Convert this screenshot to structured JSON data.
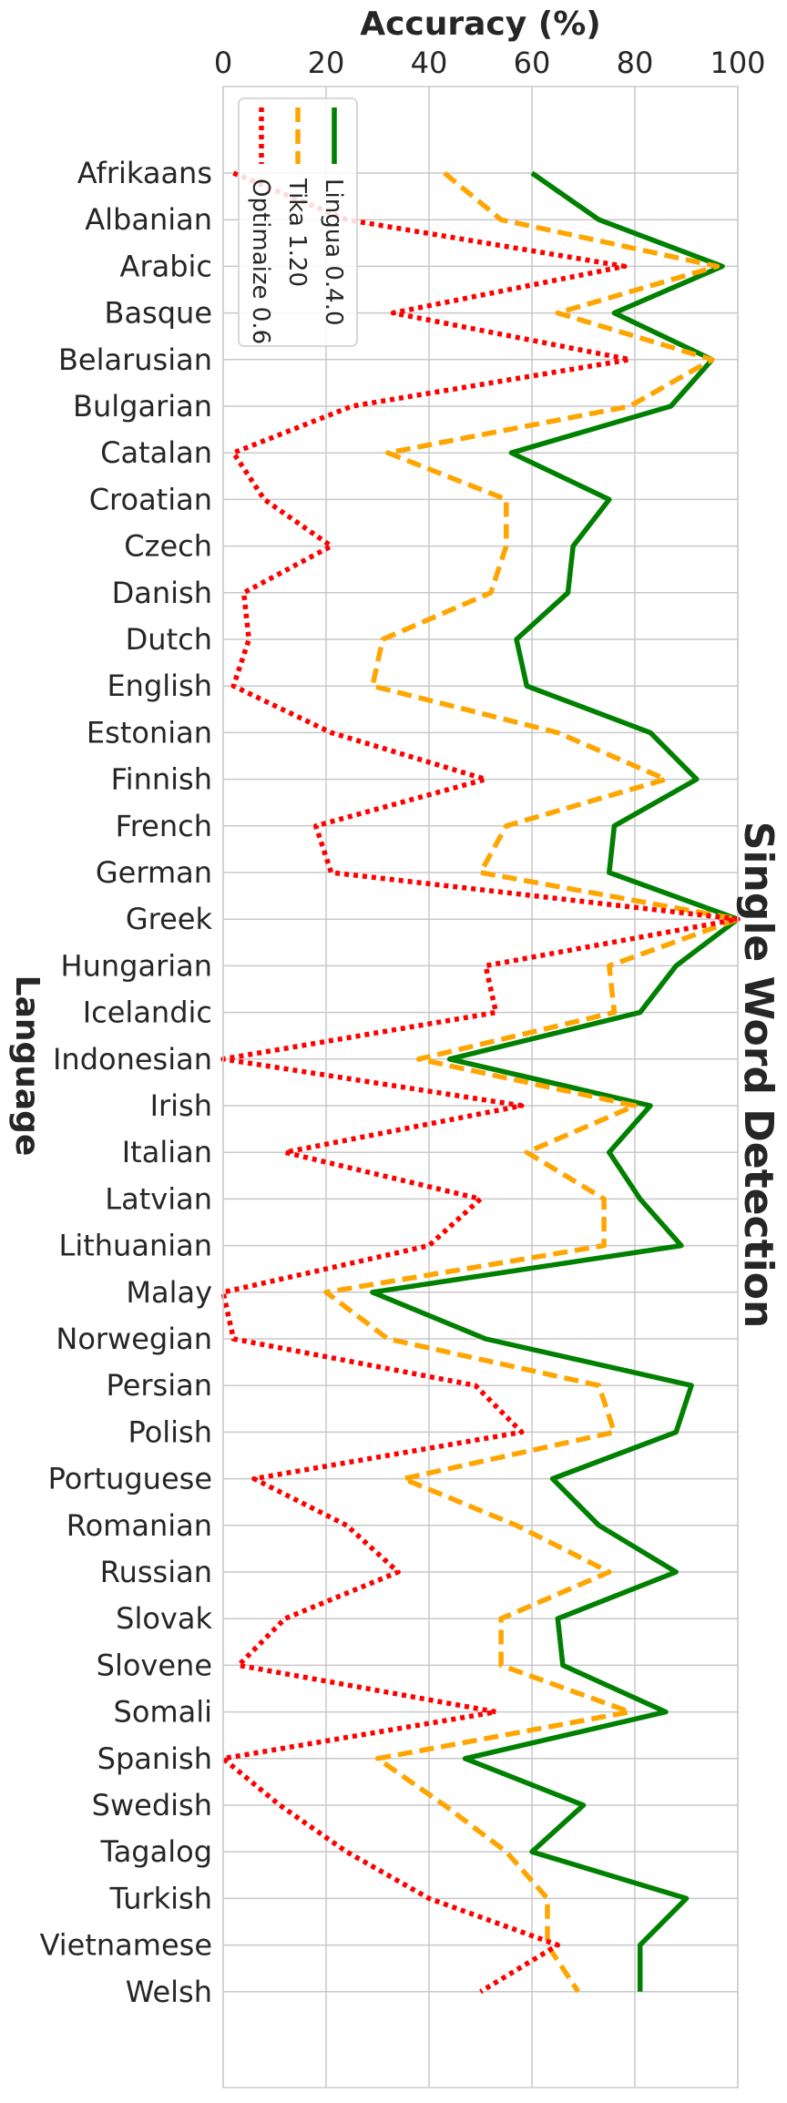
{
  "chart_data": {
    "type": "line",
    "title": "Single Word Detection",
    "xlabel": "Accuracy (%)",
    "ylabel": "Language",
    "xlim": [
      0,
      100
    ],
    "x_ticks": [
      0,
      20,
      40,
      60,
      80,
      100
    ],
    "grid": true,
    "legend_position": "top-left",
    "categories": [
      "Afrikaans",
      "Albanian",
      "Arabic",
      "Basque",
      "Belarusian",
      "Bulgarian",
      "Catalan",
      "Croatian",
      "Czech",
      "Danish",
      "Dutch",
      "English",
      "Estonian",
      "Finnish",
      "French",
      "German",
      "Greek",
      "Hungarian",
      "Icelandic",
      "Indonesian",
      "Irish",
      "Italian",
      "Latvian",
      "Lithuanian",
      "Malay",
      "Norwegian",
      "Persian",
      "Polish",
      "Portuguese",
      "Romanian",
      "Russian",
      "Slovak",
      "Slovene",
      "Somali",
      "Spanish",
      "Swedish",
      "Tagalog",
      "Turkish",
      "Vietnamese",
      "Welsh"
    ],
    "series": [
      {
        "name": "Lingua 0.4.0",
        "color": "#008000",
        "style": "solid",
        "values": [
          60,
          73,
          97,
          76,
          95,
          87,
          56,
          75,
          68,
          67,
          57,
          59,
          83,
          92,
          76,
          75,
          100,
          88,
          81,
          44,
          83,
          75,
          81,
          89,
          29,
          51,
          91,
          88,
          64,
          73,
          88,
          65,
          66,
          86,
          47,
          70,
          60,
          90,
          81,
          81
        ]
      },
      {
        "name": "Tika 1.20",
        "color": "#FFA500",
        "style": "dashed",
        "values": [
          43,
          54,
          96,
          65,
          95,
          79,
          32,
          55,
          55,
          52,
          31,
          29,
          65,
          86,
          55,
          50,
          100,
          75,
          76,
          38,
          80,
          59,
          74,
          74,
          20,
          32,
          73,
          76,
          35,
          57,
          75,
          54,
          54,
          79,
          30,
          43,
          55,
          63,
          63,
          69
        ]
      },
      {
        "name": "Optimaize 0.6",
        "color": "#FF0000",
        "style": "dotted",
        "values": [
          2,
          24,
          78,
          33,
          79,
          25,
          2,
          8,
          21,
          4,
          5,
          2,
          21,
          51,
          18,
          21,
          100,
          51,
          53,
          0,
          58,
          12,
          50,
          40,
          0,
          2,
          49,
          58,
          6,
          24,
          34,
          12,
          3,
          53,
          0,
          11,
          24,
          40,
          65,
          50
        ]
      }
    ]
  }
}
